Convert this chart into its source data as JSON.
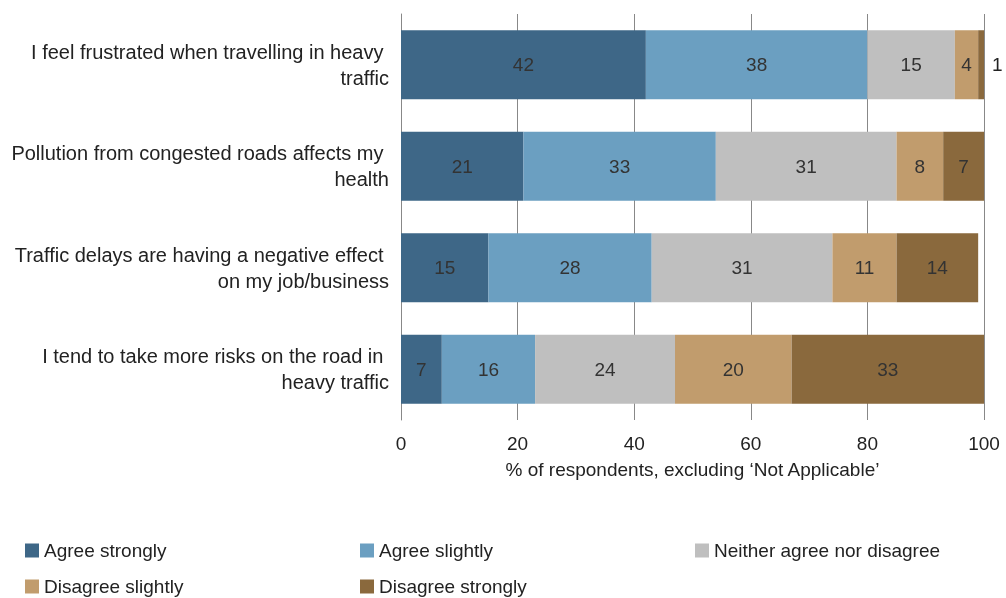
{
  "chart_data": {
    "type": "bar",
    "orientation": "horizontal",
    "stacked": true,
    "xlabel": "% of respondents, excluding ‘Not Applicable’",
    "categories": [
      "I feel frustrated when travelling in heavy traffic",
      "Pollution from congested roads affects my health",
      "Traffic delays are having a negative effect on my job/business",
      "I tend to take more risks on the road in heavy traffic"
    ],
    "series": [
      {
        "name": "Agree strongly",
        "color": "#3e6787",
        "values": [
          42,
          21,
          15,
          7
        ]
      },
      {
        "name": "Agree slightly",
        "color": "#6b9fc1",
        "values": [
          38,
          33,
          28,
          16
        ]
      },
      {
        "name": "Neither agree nor disagree",
        "color": "#bfbfbf",
        "values": [
          15,
          31,
          31,
          24
        ]
      },
      {
        "name": "Disagree slightly",
        "color": "#c19c6d",
        "values": [
          4,
          8,
          11,
          20
        ]
      },
      {
        "name": "Disagree strongly",
        "color": "#8a693d",
        "values": [
          1,
          7,
          14,
          33
        ]
      }
    ],
    "xlim": [
      0,
      100
    ],
    "xticks": [
      0,
      20,
      40,
      60,
      80,
      100
    ],
    "grid": "x",
    "legend": "bottom",
    "data_labels": true
  }
}
